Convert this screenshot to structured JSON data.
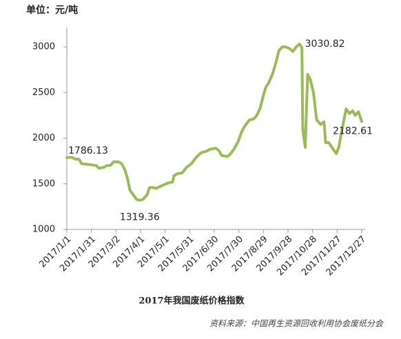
{
  "unit": "单位：元/吨",
  "source": "资料来源：中国再生资源回收利用协会废纸分会",
  "chart_data": {
    "type": "line",
    "title": "2017年我国废纸价格指数",
    "color": "#9bbb59",
    "x": [
      "2017/1/1",
      "2017/1/6",
      "2017/1/12",
      "2017/1/16",
      "2017/1/19",
      "2017/1/29",
      "2017/2/6",
      "2017/2/9",
      "2017/2/15",
      "2017/2/19",
      "2017/2/23",
      "2017/2/27",
      "2017/3/5",
      "2017/3/9",
      "2017/3/13",
      "2017/3/16",
      "2017/3/19",
      "2017/3/23",
      "2017/3/27",
      "2017/3/31",
      "2017/4/4",
      "2017/4/9",
      "2017/4/12",
      "2017/4/16",
      "2017/4/20",
      "2017/4/27",
      "2017/5/5",
      "2017/5/10",
      "2017/5/12",
      "2017/5/16",
      "2017/5/22",
      "2017/5/27",
      "2017/6/2",
      "2017/6/8",
      "2017/6/14",
      "2017/6/21",
      "2017/6/25",
      "2017/7/2",
      "2017/7/6",
      "2017/7/9",
      "2017/7/16",
      "2017/7/20",
      "2017/7/24",
      "2017/7/29",
      "2017/8/2",
      "2017/8/6",
      "2017/8/12",
      "2017/8/17",
      "2017/8/21",
      "2017/8/25",
      "2017/8/29",
      "2017/9/1",
      "2017/9/4",
      "2017/9/9",
      "2017/9/13",
      "2017/9/17",
      "2017/9/21",
      "2017/9/25",
      "2017/9/30",
      "2017/10/4",
      "2017/10/8",
      "2017/10/12",
      "2017/10/15",
      "2017/10/16",
      "2017/10/19",
      "2017/10/22",
      "2017/10/25",
      "2017/10/29",
      "2017/11/2",
      "2017/11/7",
      "2017/11/11",
      "2017/11/13",
      "2017/11/17",
      "2017/11/22",
      "2017/11/26",
      "2017/11/29",
      "2017/12/3",
      "2017/12/8",
      "2017/12/12",
      "2017/12/16",
      "2017/12/19",
      "2017/12/23",
      "2017/12/27"
    ],
    "values": [
      1786.13,
      1790,
      1770,
      1770,
      1720,
      1710,
      1700,
      1670,
      1680,
      1700,
      1700,
      1740,
      1740,
      1720,
      1650,
      1560,
      1430,
      1380,
      1330,
      1319.36,
      1330,
      1380,
      1460,
      1460,
      1450,
      1480,
      1510,
      1520,
      1590,
      1610,
      1620,
      1680,
      1720,
      1790,
      1840,
      1860,
      1880,
      1890,
      1860,
      1810,
      1800,
      1830,
      1880,
      1960,
      2060,
      2130,
      2200,
      2210,
      2250,
      2330,
      2470,
      2560,
      2600,
      2700,
      2820,
      2960,
      3000,
      3000,
      2980,
      2950,
      3000,
      3030.82,
      2990,
      2100,
      1900,
      2700,
      2650,
      2500,
      2200,
      2150,
      2180,
      1950,
      1950,
      1880,
      1830,
      1900,
      2100,
      2320,
      2270,
      2300,
      2250,
      2290,
      2182.61
    ],
    "value_labels": [
      "1786.13",
      null,
      null,
      null,
      null,
      null,
      null,
      null,
      null,
      null,
      null,
      null,
      null,
      null,
      null,
      null,
      null,
      null,
      null,
      "1319.36",
      null,
      null,
      null,
      null,
      null,
      null,
      null,
      null,
      null,
      null,
      null,
      null,
      null,
      null,
      null,
      null,
      null,
      null,
      null,
      null,
      null,
      null,
      null,
      null,
      null,
      null,
      null,
      null,
      null,
      null,
      null,
      null,
      null,
      null,
      null,
      null,
      null,
      null,
      null,
      null,
      null,
      "3030.82",
      null,
      null,
      null,
      null,
      null,
      null,
      null,
      null,
      null,
      null,
      null,
      null,
      null,
      null,
      null,
      null,
      null,
      null,
      null,
      null,
      "2182.61"
    ],
    "xlim": [
      "2017/1/1",
      "2017/12/27"
    ],
    "xticks": [
      "2017/1/1",
      "2017/1/31",
      "2017/3/2",
      "2017/4/1",
      "2017/5/1",
      "2017/5/31",
      "2017/6/30",
      "2017/7/30",
      "2017/8/29",
      "2017/9/28",
      "2017/10/28",
      "2017/11/27",
      "2017/12/27"
    ],
    "ylim": [
      1000,
      3000
    ],
    "yticks": [
      1000,
      1500,
      2000,
      2500,
      3000
    ]
  }
}
